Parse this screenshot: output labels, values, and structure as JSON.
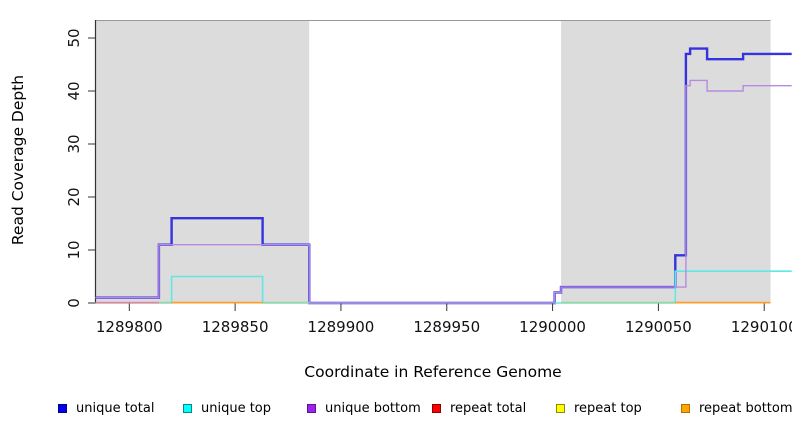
{
  "axes": {
    "x_title": "Coordinate in Reference Genome",
    "y_title": "Read Coverage Depth"
  },
  "chart_data": {
    "type": "line",
    "subtype": "step-coverage",
    "title": "",
    "xlabel": "Coordinate in Reference Genome",
    "ylabel": "Read Coverage Depth",
    "xlim": [
      1289784,
      1290113
    ],
    "ylim": [
      0,
      53
    ],
    "grid": false,
    "legend_position": "bottom",
    "x_ticks": [
      1289800,
      1289850,
      1289900,
      1289950,
      1290000,
      1290050,
      1290100
    ],
    "x_tick_labels": [
      "1289800",
      "1289850",
      "1289900",
      "1289950",
      "1290000",
      "1290050",
      "1290100"
    ],
    "y_ticks": [
      0,
      10,
      20,
      30,
      40,
      50
    ],
    "y_tick_labels": [
      "0",
      "10",
      "20",
      "30",
      "40",
      "50"
    ],
    "colors": {
      "shaded_region": "#DCDCDC",
      "axis": "#333333",
      "plot_border": "#999999",
      "tick_label": "#111111"
    },
    "shaded_regions": [
      {
        "x0": 1289784,
        "x1": 1289885
      },
      {
        "x0": 1290004,
        "x1": 1290103
      }
    ],
    "series": [
      {
        "name": "unique total",
        "color": "#3532E0",
        "width": 2.4,
        "steps": [
          [
            1289784,
            1
          ],
          [
            1289814,
            11
          ],
          [
            1289820,
            16
          ],
          [
            1289863,
            11
          ],
          [
            1289885,
            0
          ],
          [
            1290001,
            2
          ],
          [
            1290004,
            3
          ],
          [
            1290058,
            9
          ],
          [
            1290063,
            47
          ],
          [
            1290065,
            48
          ],
          [
            1290073,
            46
          ],
          [
            1290090,
            47
          ]
        ],
        "x_end": 1290113
      },
      {
        "name": "unique top",
        "color": "#5FE8E6",
        "width": 1.6,
        "steps": [
          [
            1289784,
            0
          ],
          [
            1289820,
            5
          ],
          [
            1289863,
            0
          ],
          [
            1290058,
            6
          ]
        ],
        "x_end": 1290113
      },
      {
        "name": "unique bottom",
        "color": "#B48BE0",
        "width": 1.4,
        "steps": [
          [
            1289784,
            1
          ],
          [
            1289814,
            11
          ],
          [
            1289885,
            0
          ],
          [
            1290001,
            2
          ],
          [
            1290004,
            3
          ],
          [
            1290063,
            41
          ],
          [
            1290065,
            42
          ],
          [
            1290073,
            40
          ],
          [
            1290090,
            41
          ]
        ],
        "x_end": 1290113
      }
    ],
    "zero_level_segments": [
      {
        "color": "#E8849E",
        "x0": 1289784,
        "x1": 1289814
      },
      {
        "color": "#98D6A4",
        "x0": 1289814,
        "x1": 1289820
      },
      {
        "color": "#FF9E2E",
        "x0": 1289820,
        "x1": 1289863
      },
      {
        "color": "#98D6A4",
        "x0": 1289863,
        "x1": 1289885
      },
      {
        "color": "#98D6A4",
        "x0": 1290004,
        "x1": 1290058
      },
      {
        "color": "#FF9E2E",
        "x0": 1290058,
        "x1": 1290103
      }
    ]
  },
  "legend": {
    "items": [
      {
        "label": "unique total",
        "fill": "#0000EE",
        "border": "#00008B"
      },
      {
        "label": "unique top",
        "fill": "#00FFFF",
        "border": "#008B8B"
      },
      {
        "label": "unique bottom",
        "fill": "#A020F0",
        "border": "#551A8B"
      },
      {
        "label": "repeat total",
        "fill": "#FF0000",
        "border": "#8B0000"
      },
      {
        "label": "repeat top",
        "fill": "#FFFF00",
        "border": "#8B8B00"
      },
      {
        "label": "repeat bottom",
        "fill": "#FFA500",
        "border": "#B86E00"
      }
    ]
  }
}
